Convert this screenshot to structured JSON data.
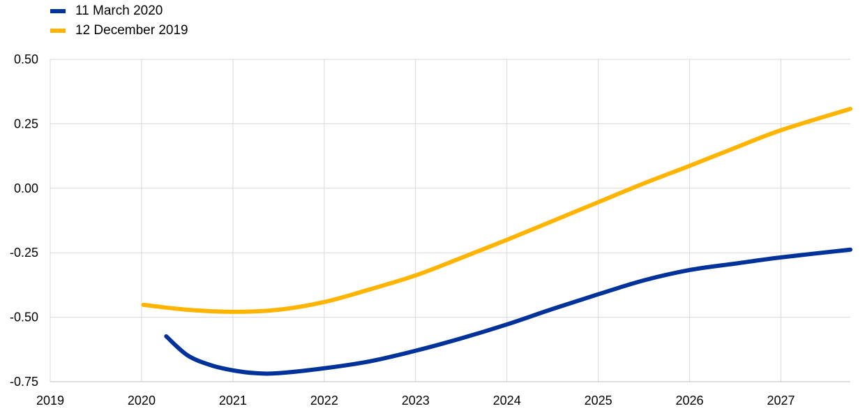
{
  "chart_data": {
    "type": "line",
    "title": "",
    "xlabel": "",
    "ylabel": "",
    "xlim": [
      2019,
      2027.76
    ],
    "ylim": [
      -0.75,
      0.5
    ],
    "x_ticks": [
      "2019",
      "2020",
      "2021",
      "2022",
      "2023",
      "2024",
      "2025",
      "2026",
      "2027"
    ],
    "y_ticks": [
      "0.50",
      "0.25",
      "0.00",
      "-0.25",
      "-0.50",
      "-0.75"
    ],
    "grid": true,
    "legend_placement": "top-left",
    "series": [
      {
        "name": "11 March 2020",
        "color": "#003299",
        "x": [
          2020.27,
          2020.5,
          2020.75,
          2021,
          2021.25,
          2021.5,
          2022,
          2022.5,
          2023,
          2023.5,
          2024,
          2024.5,
          2025,
          2025.5,
          2026,
          2026.5,
          2027,
          2027.76
        ],
        "y": [
          -0.574,
          -0.647,
          -0.685,
          -0.706,
          -0.717,
          -0.717,
          -0.698,
          -0.671,
          -0.63,
          -0.582,
          -0.528,
          -0.468,
          -0.411,
          -0.357,
          -0.317,
          -0.292,
          -0.268,
          -0.238
        ]
      },
      {
        "name": "12 December 2019",
        "color": "#FFB400",
        "x": [
          2020.02,
          2020.5,
          2021,
          2021.5,
          2022,
          2022.5,
          2023,
          2023.5,
          2024,
          2024.5,
          2025,
          2025.5,
          2026,
          2026.5,
          2027,
          2027.76
        ],
        "y": [
          -0.452,
          -0.471,
          -0.479,
          -0.471,
          -0.441,
          -0.392,
          -0.338,
          -0.27,
          -0.2,
          -0.127,
          -0.054,
          0.019,
          0.087,
          0.157,
          0.225,
          0.308
        ]
      }
    ]
  }
}
